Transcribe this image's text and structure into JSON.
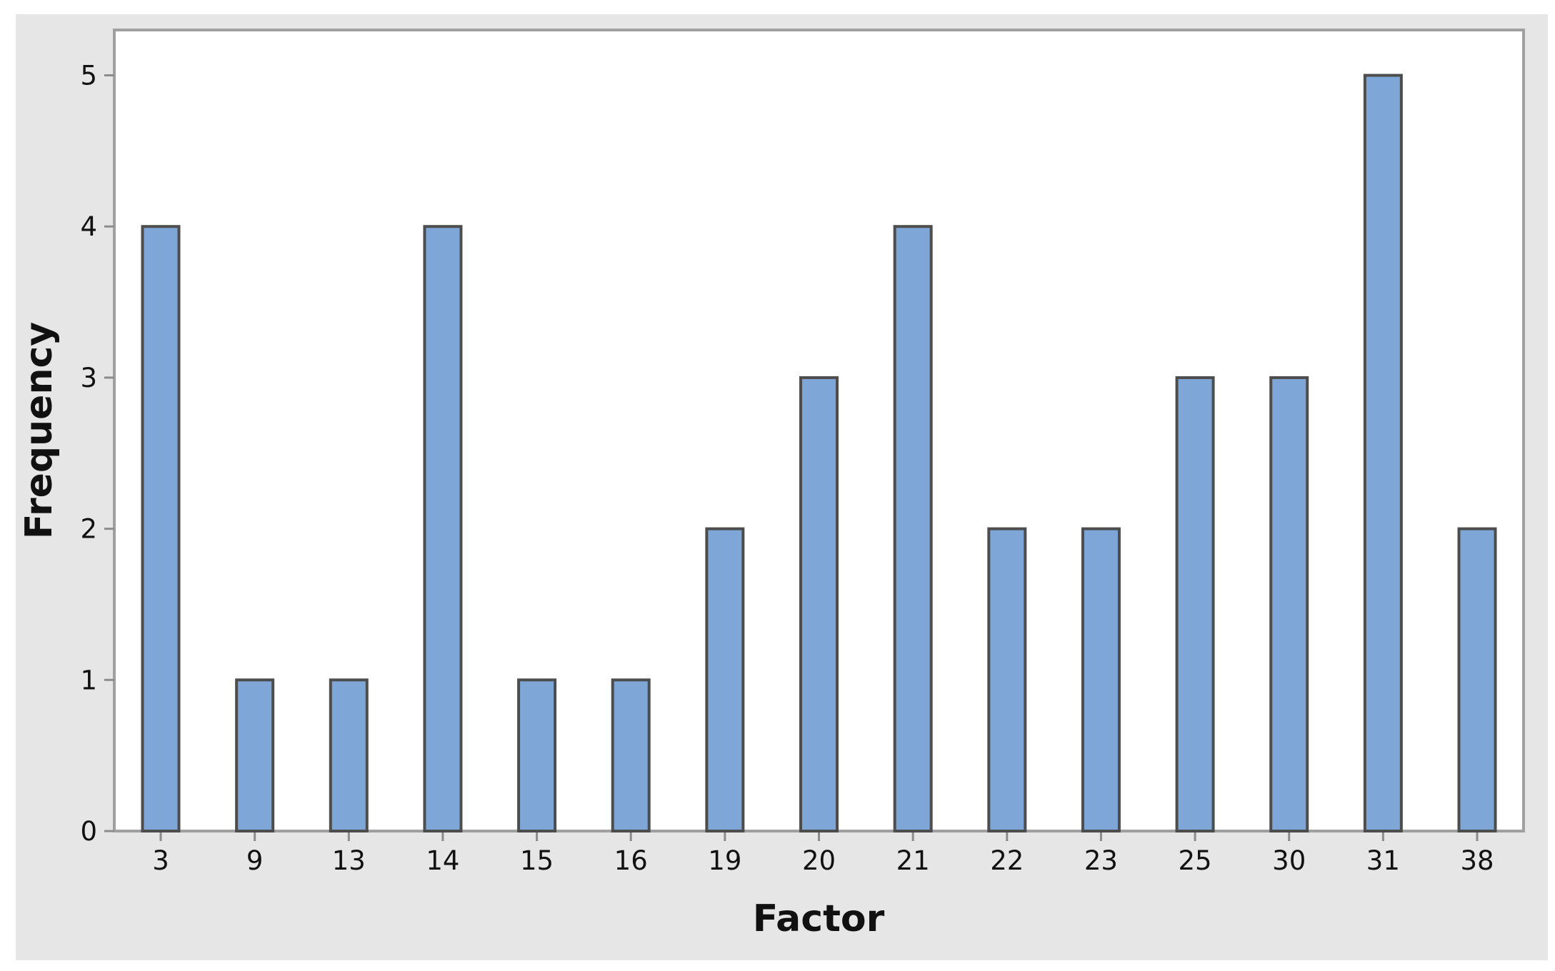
{
  "chart_data": {
    "type": "bar",
    "title": "",
    "xlabel": "Factor",
    "ylabel": "Frequency",
    "categories": [
      "3",
      "9",
      "13",
      "14",
      "15",
      "16",
      "19",
      "20",
      "21",
      "22",
      "23",
      "25",
      "30",
      "31",
      "38"
    ],
    "values": [
      4,
      1,
      1,
      4,
      1,
      1,
      2,
      3,
      4,
      2,
      2,
      3,
      3,
      5,
      2
    ],
    "ylim": [
      0,
      5.3
    ],
    "yticks": [
      "0",
      "1",
      "2",
      "3",
      "4",
      "5"
    ],
    "grid": false,
    "legend": "none",
    "colors": {
      "bar_fill": "#7ea7d8",
      "bar_edge": "#4d4d4d",
      "outer_background": "#e6e6e6",
      "plot_background": "#ffffff",
      "frame": "#a0a0a0"
    }
  }
}
